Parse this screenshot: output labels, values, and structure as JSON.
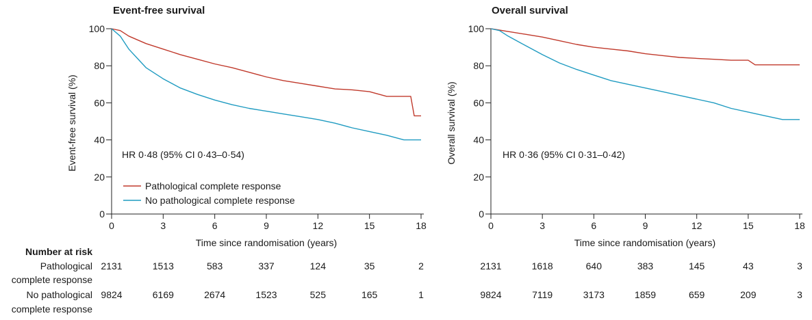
{
  "risk_table": {
    "header": "Number at risk",
    "group_labels": [
      [
        "Pathological",
        "complete response"
      ],
      [
        "No pathological",
        "complete response"
      ]
    ]
  },
  "legend": {
    "items": [
      {
        "label": "Pathological complete response",
        "color": "#c0392b"
      },
      {
        "label": "No pathological complete response",
        "color": "#1f9bc1"
      }
    ]
  },
  "chart_data": [
    {
      "type": "line",
      "title": "Event-free survival",
      "xlabel": "Time since randomisation (years)",
      "ylabel": "Event-free survival (%)",
      "xlim": [
        0,
        18
      ],
      "ylim": [
        0,
        100
      ],
      "xticks": [
        0,
        3,
        6,
        9,
        12,
        15,
        18
      ],
      "yticks": [
        0,
        20,
        40,
        60,
        80,
        100
      ],
      "annotation": "HR 0·48 (95% CI 0·43–0·54)",
      "series": [
        {
          "name": "Pathological complete response",
          "color": "#c0392b",
          "x": [
            0,
            0.5,
            1,
            2,
            3,
            4,
            5,
            6,
            7,
            8,
            9,
            10,
            11,
            12,
            13,
            14,
            15,
            16,
            17,
            17.4,
            17.6,
            18
          ],
          "y": [
            100,
            99,
            96,
            92,
            89,
            86,
            83.5,
            81,
            79,
            76.5,
            74,
            72,
            70.5,
            69,
            67.5,
            67,
            66,
            63.5,
            63.5,
            63.5,
            53,
            53
          ]
        },
        {
          "name": "No pathological complete response",
          "color": "#1f9bc1",
          "x": [
            0,
            0.5,
            1,
            1.5,
            2,
            3,
            4,
            5,
            6,
            7,
            8,
            9,
            10,
            11,
            12,
            13,
            14,
            15,
            16,
            17,
            18
          ],
          "y": [
            100,
            96,
            89,
            84,
            79,
            73,
            68,
            64.5,
            61.5,
            59,
            57,
            55.5,
            54,
            52.5,
            51,
            49,
            46.5,
            44.5,
            42.5,
            40,
            40
          ]
        }
      ],
      "risk_rows": [
        [
          "2131",
          "1513",
          "583",
          "337",
          "124",
          "35",
          "2"
        ],
        [
          "9824",
          "6169",
          "2674",
          "1523",
          "525",
          "165",
          "1"
        ]
      ]
    },
    {
      "type": "line",
      "title": "Overall survival",
      "xlabel": "Time since randomisation (years)",
      "ylabel": "Overall survival (%)",
      "xlim": [
        0,
        18
      ],
      "ylim": [
        0,
        100
      ],
      "xticks": [
        0,
        3,
        6,
        9,
        12,
        15,
        18
      ],
      "yticks": [
        0,
        20,
        40,
        60,
        80,
        100
      ],
      "annotation": "HR 0·36 (95% CI 0·31–0·42)",
      "series": [
        {
          "name": "Pathological complete response",
          "color": "#c0392b",
          "x": [
            0,
            1,
            2,
            3,
            4,
            5,
            6,
            7,
            8,
            9,
            10,
            11,
            12,
            13,
            14,
            15,
            15.4,
            16,
            17,
            18
          ],
          "y": [
            100,
            98.5,
            97,
            95.5,
            93.5,
            91.5,
            90,
            89,
            88,
            86.5,
            85.5,
            84.5,
            84,
            83.5,
            83,
            83,
            80.5,
            80.5,
            80.5,
            80.5
          ]
        },
        {
          "name": "No pathological complete response",
          "color": "#1f9bc1",
          "x": [
            0,
            0.5,
            1,
            2,
            3,
            4,
            5,
            6,
            7,
            8,
            9,
            10,
            11,
            12,
            13,
            14,
            15,
            16,
            17,
            18
          ],
          "y": [
            100,
            99,
            96,
            91,
            86,
            81.5,
            78,
            75,
            72,
            70,
            68,
            66,
            64,
            62,
            60,
            57,
            55,
            53,
            51,
            51
          ]
        }
      ],
      "risk_rows": [
        [
          "2131",
          "1618",
          "640",
          "383",
          "145",
          "43",
          "3"
        ],
        [
          "9824",
          "7119",
          "3173",
          "1859",
          "659",
          "209",
          "3"
        ]
      ]
    }
  ]
}
